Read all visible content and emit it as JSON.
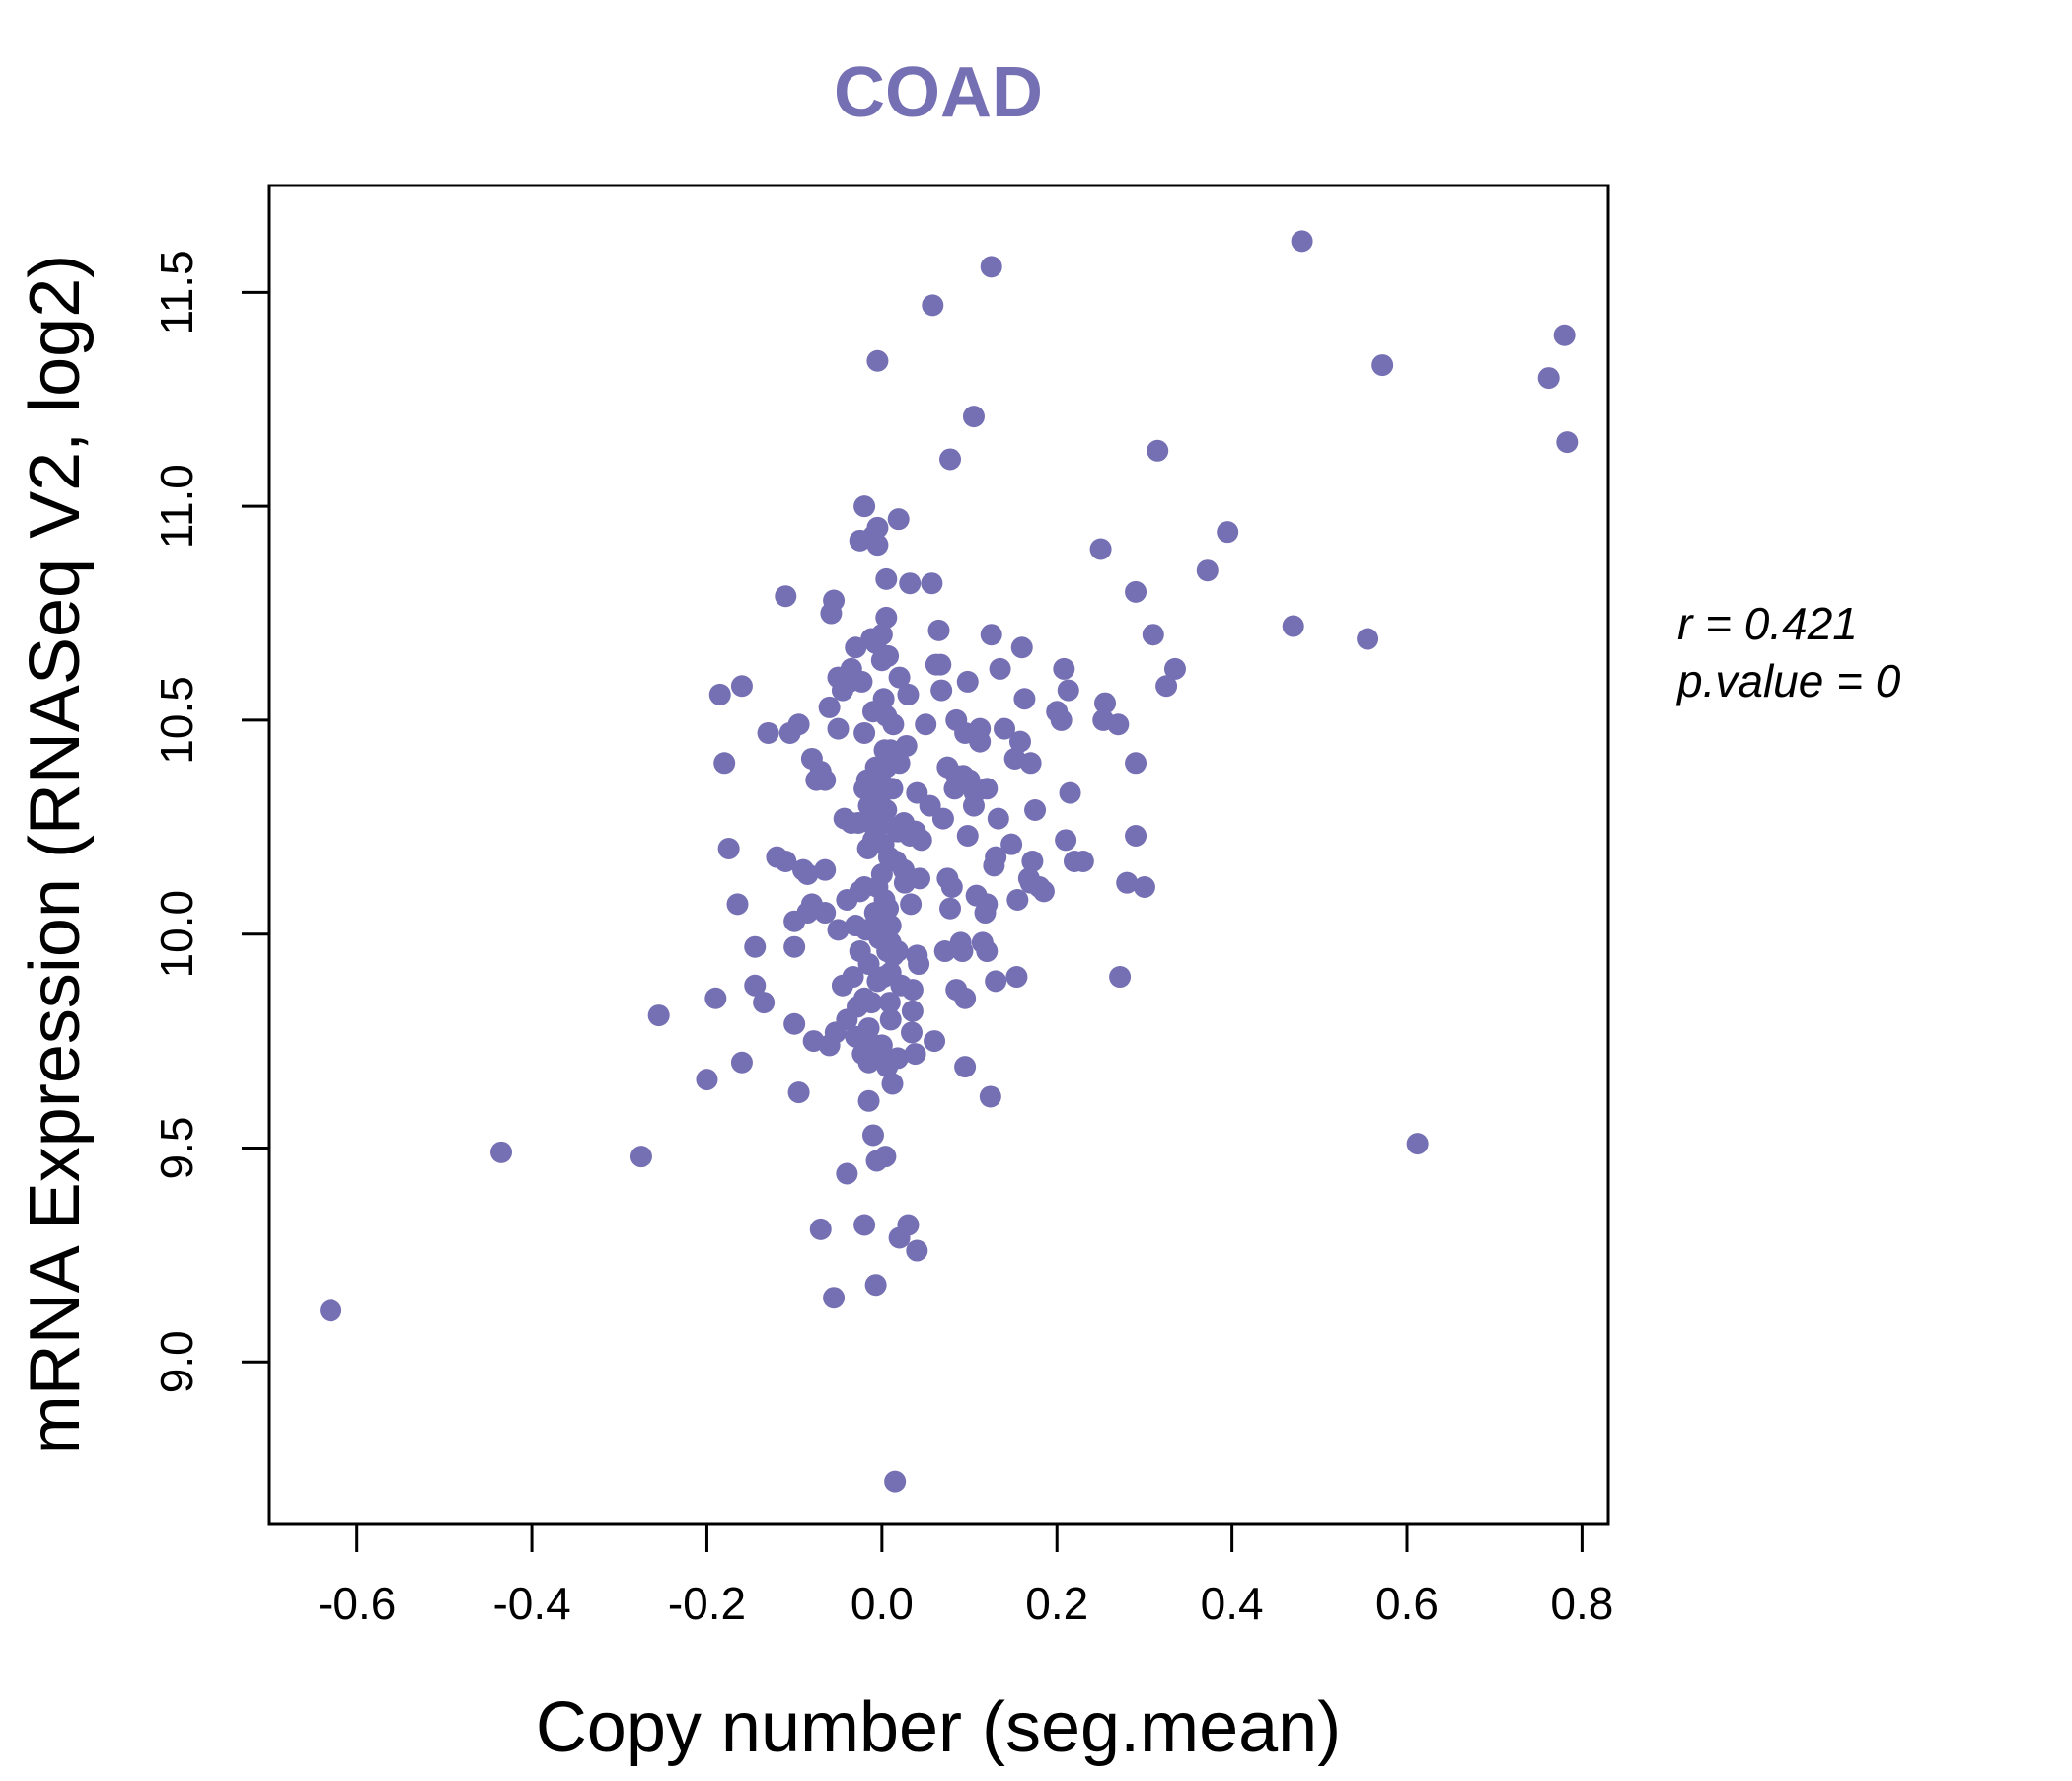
{
  "chart_data": {
    "type": "scatter",
    "title": "COAD",
    "xlabel": "Copy number (seg.mean)",
    "ylabel": "mRNA Expression (RNASeq V2, log2)",
    "xlim": [
      -0.7,
      0.83
    ],
    "ylim": [
      8.62,
      11.75
    ],
    "x_ticks": [
      -0.6,
      -0.4,
      -0.2,
      0.0,
      0.2,
      0.4,
      0.6,
      0.8
    ],
    "x_tick_labels": [
      "-0.6",
      "-0.4",
      "-0.2",
      "0.0",
      "0.2",
      "0.4",
      "0.6",
      "0.8"
    ],
    "y_ticks": [
      9.0,
      9.5,
      10.0,
      10.5,
      11.0,
      11.5
    ],
    "y_tick_labels": [
      "9.0",
      "9.5",
      "10.0",
      "10.5",
      "11.0",
      "11.5"
    ],
    "grid": false,
    "point_color": "#7570b3",
    "annotations": {
      "r_label": "r = 0.421",
      "p_label": "p.value = 0"
    },
    "points": [
      [
        -0.63,
        9.12
      ],
      [
        -0.435,
        9.49
      ],
      [
        -0.275,
        9.48
      ],
      [
        -0.255,
        9.81
      ],
      [
        -0.2,
        9.66
      ],
      [
        -0.19,
        9.85
      ],
      [
        -0.185,
        10.56
      ],
      [
        -0.18,
        10.4
      ],
      [
        -0.175,
        10.2
      ],
      [
        -0.165,
        10.07
      ],
      [
        -0.16,
        10.58
      ],
      [
        -0.16,
        9.7
      ],
      [
        -0.145,
        9.97
      ],
      [
        -0.145,
        9.88
      ],
      [
        -0.135,
        9.84
      ],
      [
        -0.13,
        10.47
      ],
      [
        -0.12,
        10.18
      ],
      [
        -0.11,
        10.79
      ],
      [
        -0.11,
        10.17
      ],
      [
        -0.105,
        10.47
      ],
      [
        -0.1,
        9.97
      ],
      [
        -0.1,
        10.03
      ],
      [
        -0.1,
        9.79
      ],
      [
        -0.095,
        10.49
      ],
      [
        -0.095,
        9.63
      ],
      [
        -0.09,
        10.15
      ],
      [
        -0.085,
        10.05
      ],
      [
        -0.085,
        10.14
      ],
      [
        -0.08,
        10.41
      ],
      [
        -0.08,
        10.07
      ],
      [
        -0.078,
        9.75
      ],
      [
        -0.075,
        10.36
      ],
      [
        -0.07,
        10.38
      ],
      [
        -0.07,
        9.31
      ],
      [
        -0.065,
        10.36
      ],
      [
        -0.065,
        10.15
      ],
      [
        -0.065,
        10.05
      ],
      [
        -0.06,
        9.74
      ],
      [
        -0.06,
        10.53
      ],
      [
        -0.058,
        10.75
      ],
      [
        -0.055,
        9.15
      ],
      [
        -0.055,
        10.78
      ],
      [
        -0.053,
        9.77
      ],
      [
        -0.05,
        10.48
      ],
      [
        -0.05,
        10.6
      ],
      [
        -0.05,
        10.01
      ],
      [
        -0.045,
        10.57
      ],
      [
        -0.045,
        9.88
      ],
      [
        -0.043,
        10.27
      ],
      [
        -0.04,
        9.44
      ],
      [
        -0.04,
        10.08
      ],
      [
        -0.04,
        9.8
      ],
      [
        -0.037,
        10.59
      ],
      [
        -0.035,
        10.62
      ],
      [
        -0.035,
        10.26
      ],
      [
        -0.033,
        9.9
      ],
      [
        -0.03,
        10.67
      ],
      [
        -0.03,
        10.02
      ],
      [
        -0.03,
        9.76
      ],
      [
        -0.028,
        9.83
      ],
      [
        -0.027,
        10.26
      ],
      [
        -0.025,
        10.92
      ],
      [
        -0.025,
        10.1
      ],
      [
        -0.025,
        9.96
      ],
      [
        -0.023,
        10.59
      ],
      [
        -0.022,
        9.72
      ],
      [
        -0.02,
        10.47
      ],
      [
        -0.02,
        10.11
      ],
      [
        -0.02,
        9.32
      ],
      [
        -0.02,
        9.85
      ],
      [
        -0.02,
        11.0
      ],
      [
        -0.02,
        10.34
      ],
      [
        -0.018,
        10.01
      ],
      [
        -0.017,
        10.36
      ],
      [
        -0.016,
        10.2
      ],
      [
        -0.015,
        10.3
      ],
      [
        -0.015,
        9.93
      ],
      [
        -0.015,
        9.78
      ],
      [
        -0.015,
        9.7
      ],
      [
        -0.015,
        9.61
      ],
      [
        -0.013,
        10.26
      ],
      [
        -0.012,
        10.69
      ],
      [
        -0.012,
        9.84
      ],
      [
        -0.01,
        10.93
      ],
      [
        -0.01,
        10.22
      ],
      [
        -0.01,
        9.53
      ],
      [
        -0.01,
        10.52
      ],
      [
        -0.008,
        10.05
      ],
      [
        -0.008,
        9.74
      ],
      [
        -0.007,
        10.68
      ],
      [
        -0.007,
        10.39
      ],
      [
        -0.007,
        9.18
      ],
      [
        -0.006,
        9.47
      ],
      [
        -0.005,
        10.91
      ],
      [
        -0.005,
        10.95
      ],
      [
        -0.005,
        10.25
      ],
      [
        -0.005,
        10.11
      ],
      [
        -0.005,
        9.89
      ],
      [
        -0.005,
        11.34
      ],
      [
        -0.003,
        10.03
      ],
      [
        -0.003,
        9.99
      ],
      [
        -0.002,
        10.37
      ],
      [
        -0.002,
        9.71
      ],
      [
        0.0,
        10.64
      ],
      [
        0.0,
        10.7
      ],
      [
        0.0,
        10.14
      ],
      [
        0.0,
        9.74
      ],
      [
        0.0,
        10.33
      ],
      [
        0.002,
        10.21
      ],
      [
        0.002,
        9.9
      ],
      [
        0.002,
        10.55
      ],
      [
        0.003,
        10.08
      ],
      [
        0.003,
        10.43
      ],
      [
        0.004,
        10.26
      ],
      [
        0.004,
        10.0
      ],
      [
        0.004,
        9.48
      ],
      [
        0.005,
        10.39
      ],
      [
        0.005,
        10.29
      ],
      [
        0.005,
        10.51
      ],
      [
        0.005,
        10.74
      ],
      [
        0.005,
        10.83
      ],
      [
        0.006,
        9.96
      ],
      [
        0.006,
        9.69
      ],
      [
        0.007,
        10.65
      ],
      [
        0.007,
        10.06
      ],
      [
        0.008,
        10.18
      ],
      [
        0.009,
        9.84
      ],
      [
        0.01,
        9.8
      ],
      [
        0.01,
        9.98
      ],
      [
        0.01,
        10.43
      ],
      [
        0.01,
        10.02
      ],
      [
        0.01,
        9.91
      ],
      [
        0.012,
        10.34
      ],
      [
        0.012,
        9.65
      ],
      [
        0.013,
        9.95
      ],
      [
        0.013,
        10.49
      ],
      [
        0.015,
        8.72
      ],
      [
        0.015,
        10.42
      ],
      [
        0.016,
        10.17
      ],
      [
        0.018,
        9.96
      ],
      [
        0.018,
        9.71
      ],
      [
        0.018,
        10.24
      ],
      [
        0.019,
        10.97
      ],
      [
        0.02,
        9.29
      ],
      [
        0.02,
        10.6
      ],
      [
        0.02,
        10.4
      ],
      [
        0.022,
        9.88
      ],
      [
        0.025,
        10.15
      ],
      [
        0.025,
        10.26
      ],
      [
        0.026,
        10.12
      ],
      [
        0.028,
        10.44
      ],
      [
        0.03,
        9.32
      ],
      [
        0.03,
        10.56
      ],
      [
        0.032,
        10.82
      ],
      [
        0.032,
        10.23
      ],
      [
        0.033,
        10.07
      ],
      [
        0.034,
        9.77
      ],
      [
        0.035,
        9.87
      ],
      [
        0.035,
        9.82
      ],
      [
        0.038,
        10.24
      ],
      [
        0.038,
        9.72
      ],
      [
        0.04,
        9.26
      ],
      [
        0.04,
        10.33
      ],
      [
        0.04,
        9.95
      ],
      [
        0.042,
        9.93
      ],
      [
        0.043,
        10.13
      ],
      [
        0.045,
        10.22
      ],
      [
        0.05,
        10.49
      ],
      [
        0.055,
        10.3
      ],
      [
        0.057,
        10.82
      ],
      [
        0.058,
        11.47
      ],
      [
        0.06,
        9.75
      ],
      [
        0.062,
        10.63
      ],
      [
        0.065,
        10.71
      ],
      [
        0.067,
        10.63
      ],
      [
        0.068,
        10.57
      ],
      [
        0.07,
        10.27
      ],
      [
        0.072,
        9.96
      ],
      [
        0.075,
        10.13
      ],
      [
        0.075,
        10.39
      ],
      [
        0.078,
        11.11
      ],
      [
        0.078,
        10.06
      ],
      [
        0.08,
        10.11
      ],
      [
        0.083,
        10.34
      ],
      [
        0.085,
        10.5
      ],
      [
        0.085,
        10.37
      ],
      [
        0.085,
        9.87
      ],
      [
        0.09,
        9.98
      ],
      [
        0.092,
        9.96
      ],
      [
        0.093,
        10.37
      ],
      [
        0.095,
        10.47
      ],
      [
        0.095,
        9.85
      ],
      [
        0.095,
        9.69
      ],
      [
        0.098,
        10.59
      ],
      [
        0.098,
        10.23
      ],
      [
        0.1,
        10.36
      ],
      [
        0.105,
        11.21
      ],
      [
        0.105,
        10.3
      ],
      [
        0.106,
        10.33
      ],
      [
        0.108,
        10.09
      ],
      [
        0.112,
        10.48
      ],
      [
        0.112,
        10.45
      ],
      [
        0.115,
        9.98
      ],
      [
        0.118,
        10.05
      ],
      [
        0.12,
        9.96
      ],
      [
        0.12,
        10.07
      ],
      [
        0.12,
        10.34
      ],
      [
        0.124,
        9.62
      ],
      [
        0.125,
        10.7
      ],
      [
        0.125,
        11.56
      ],
      [
        0.128,
        10.16
      ],
      [
        0.13,
        9.89
      ],
      [
        0.13,
        10.18
      ],
      [
        0.133,
        10.27
      ],
      [
        0.135,
        10.62
      ],
      [
        0.14,
        10.48
      ],
      [
        0.148,
        10.21
      ],
      [
        0.152,
        10.41
      ],
      [
        0.154,
        9.9
      ],
      [
        0.155,
        10.08
      ],
      [
        0.158,
        10.45
      ],
      [
        0.16,
        10.67
      ],
      [
        0.163,
        10.55
      ],
      [
        0.168,
        10.13
      ],
      [
        0.17,
        10.12
      ],
      [
        0.17,
        10.4
      ],
      [
        0.172,
        10.17
      ],
      [
        0.175,
        10.29
      ],
      [
        0.18,
        10.11
      ],
      [
        0.185,
        10.1
      ],
      [
        0.2,
        10.52
      ],
      [
        0.205,
        10.5
      ],
      [
        0.208,
        10.62
      ],
      [
        0.21,
        10.22
      ],
      [
        0.213,
        10.57
      ],
      [
        0.215,
        10.33
      ],
      [
        0.22,
        10.17
      ],
      [
        0.23,
        10.17
      ],
      [
        0.25,
        10.9
      ],
      [
        0.253,
        10.5
      ],
      [
        0.255,
        10.54
      ],
      [
        0.27,
        10.49
      ],
      [
        0.272,
        9.9
      ],
      [
        0.28,
        10.12
      ],
      [
        0.29,
        10.23
      ],
      [
        0.29,
        10.8
      ],
      [
        0.29,
        10.4
      ],
      [
        0.3,
        10.11
      ],
      [
        0.31,
        10.7
      ],
      [
        0.315,
        11.13
      ],
      [
        0.325,
        10.58
      ],
      [
        0.335,
        10.62
      ],
      [
        0.372,
        10.85
      ],
      [
        0.395,
        10.94
      ],
      [
        0.47,
        10.72
      ],
      [
        0.48,
        11.62
      ],
      [
        0.555,
        10.69
      ],
      [
        0.572,
        11.33
      ],
      [
        0.612,
        9.51
      ],
      [
        0.762,
        11.3
      ],
      [
        0.78,
        11.4
      ],
      [
        0.783,
        11.15
      ]
    ]
  }
}
